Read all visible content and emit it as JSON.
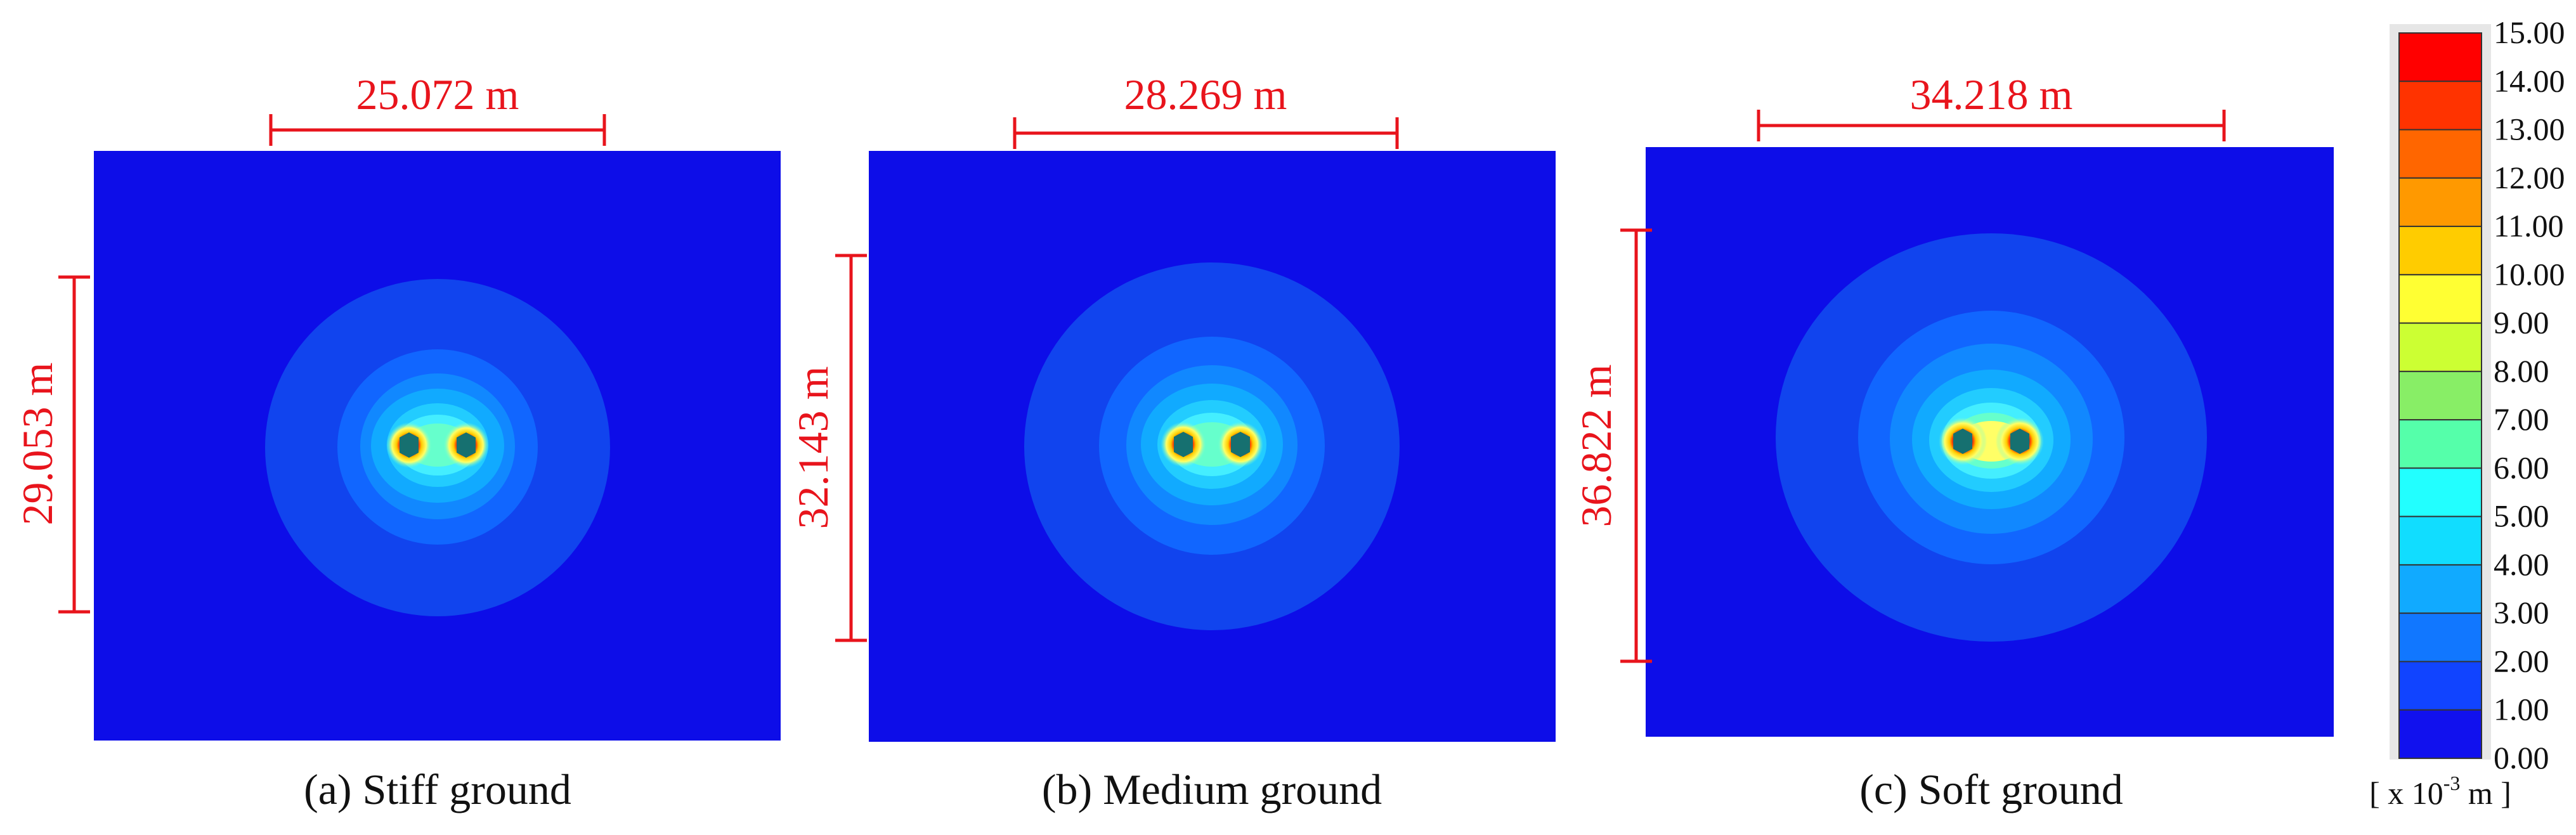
{
  "panels": [
    {
      "caption": "(a) Stiff ground",
      "width_label": "25.072 m",
      "height_label": "29.053 m"
    },
    {
      "caption": "(b) Medium ground",
      "width_label": "28.269 m",
      "height_label": "32.143 m"
    },
    {
      "caption": "(c) Soft ground",
      "width_label": "34.218 m",
      "height_label": "36.822 m"
    }
  ],
  "legend": {
    "ticks": [
      "15.00",
      "14.00",
      "13.00",
      "12.00",
      "11.00",
      "10.00",
      "9.00",
      "8.00",
      "7.00",
      "6.00",
      "5.00",
      "4.00",
      "3.00",
      "2.00",
      "1.00",
      "0.00"
    ],
    "unit_prefix": "[ x 10",
    "unit_exp": "-3",
    "unit_suffix": " m ]",
    "colors": [
      "#ff0000",
      "#ff3300",
      "#ff6600",
      "#ff9900",
      "#ffcc00",
      "#ffff33",
      "#ccff33",
      "#88ee66",
      "#55ffaa",
      "#22ffff",
      "#11ddff",
      "#11aaff",
      "#1177ff",
      "#1144ff",
      "#1111ee"
    ]
  },
  "colors": {
    "background_field": "#0d0de8",
    "dimension_red": "#e8141c"
  }
}
